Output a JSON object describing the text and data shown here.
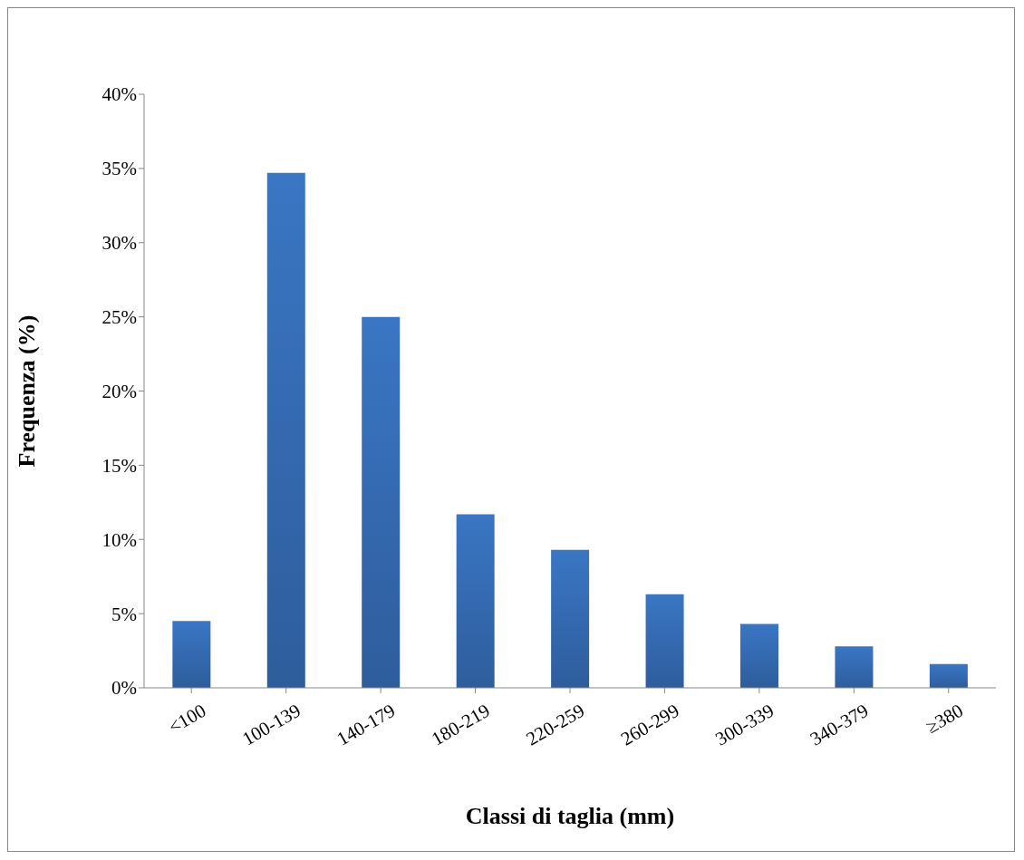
{
  "chart_data": {
    "type": "bar",
    "xlabel": "Classi di taglia (mm)",
    "ylabel": "Frequenza (%)",
    "categories": [
      "<100",
      "100-139",
      "140-179",
      "180-219",
      "220-259",
      "260-299",
      "300-339",
      "340-379",
      "≥380"
    ],
    "values": [
      4.5,
      34.7,
      25.0,
      11.7,
      9.3,
      6.3,
      4.3,
      2.8,
      1.6
    ],
    "color": "#3a76c4",
    "ylim": [
      0,
      40
    ],
    "yticks": [
      {
        "value": 0,
        "label": "0%"
      },
      {
        "value": 5,
        "label": "5%"
      },
      {
        "value": 10,
        "label": "10%"
      },
      {
        "value": 15,
        "label": "15%"
      },
      {
        "value": 20,
        "label": "20%"
      },
      {
        "value": 25,
        "label": "25%"
      },
      {
        "value": 30,
        "label": "30%"
      },
      {
        "value": 35,
        "label": "35%"
      },
      {
        "value": 40,
        "label": "40%"
      }
    ],
    "grid": false,
    "legend": false
  }
}
